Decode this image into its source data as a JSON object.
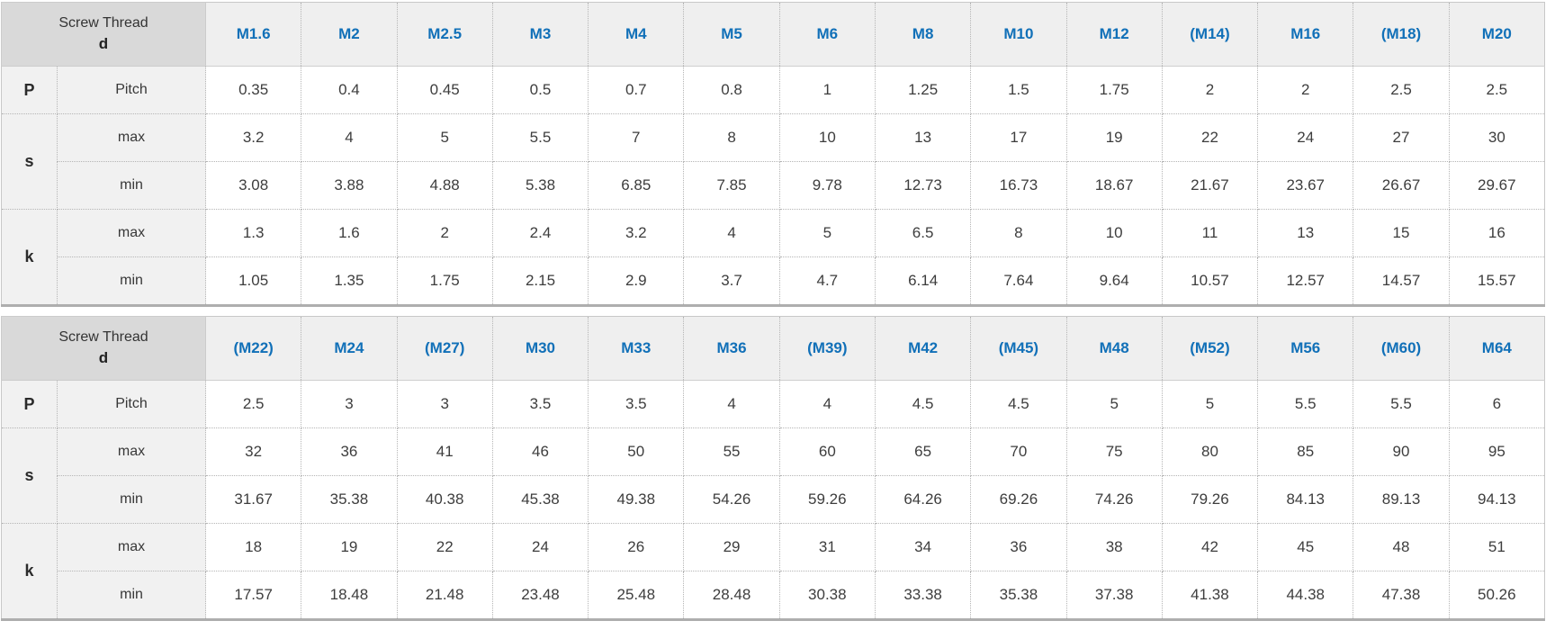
{
  "colors": {
    "accent_blue": "#1170b8",
    "corner_header_bg": "#d9d9d9",
    "column_header_bg": "#efefef",
    "row_label_bg": "#f1f1f1",
    "data_cell_bg": "#ffffff",
    "data_text": "#3d3d3d",
    "border": "#b5b5b5"
  },
  "chart_data": [
    {
      "type": "table",
      "corner_label_line1": "Screw Thread",
      "corner_label_line2": "d",
      "columns": [
        "M1.6",
        "M2",
        "M2.5",
        "M3",
        "M4",
        "M5",
        "M6",
        "M8",
        "M10",
        "M12",
        "(M14)",
        "M16",
        "(M18)",
        "M20"
      ],
      "row_groups": [
        {
          "label": "P",
          "rows": [
            {
              "sublabel": "Pitch",
              "values": [
                "0.35",
                "0.4",
                "0.45",
                "0.5",
                "0.7",
                "0.8",
                "1",
                "1.25",
                "1.5",
                "1.75",
                "2",
                "2",
                "2.5",
                "2.5"
              ]
            }
          ]
        },
        {
          "label": "s",
          "rows": [
            {
              "sublabel": "max",
              "values": [
                "3.2",
                "4",
                "5",
                "5.5",
                "7",
                "8",
                "10",
                "13",
                "17",
                "19",
                "22",
                "24",
                "27",
                "30"
              ]
            },
            {
              "sublabel": "min",
              "values": [
                "3.08",
                "3.88",
                "4.88",
                "5.38",
                "6.85",
                "7.85",
                "9.78",
                "12.73",
                "16.73",
                "18.67",
                "21.67",
                "23.67",
                "26.67",
                "29.67"
              ]
            }
          ]
        },
        {
          "label": "k",
          "rows": [
            {
              "sublabel": "max",
              "values": [
                "1.3",
                "1.6",
                "2",
                "2.4",
                "3.2",
                "4",
                "5",
                "6.5",
                "8",
                "10",
                "11",
                "13",
                "15",
                "16"
              ]
            },
            {
              "sublabel": "min",
              "values": [
                "1.05",
                "1.35",
                "1.75",
                "2.15",
                "2.9",
                "3.7",
                "4.7",
                "6.14",
                "7.64",
                "9.64",
                "10.57",
                "12.57",
                "14.57",
                "15.57"
              ]
            }
          ]
        }
      ]
    },
    {
      "type": "table",
      "corner_label_line1": "Screw Thread",
      "corner_label_line2": "d",
      "columns": [
        "(M22)",
        "M24",
        "(M27)",
        "M30",
        "M33",
        "M36",
        "(M39)",
        "M42",
        "(M45)",
        "M48",
        "(M52)",
        "M56",
        "(M60)",
        "M64"
      ],
      "row_groups": [
        {
          "label": "P",
          "rows": [
            {
              "sublabel": "Pitch",
              "values": [
                "2.5",
                "3",
                "3",
                "3.5",
                "3.5",
                "4",
                "4",
                "4.5",
                "4.5",
                "5",
                "5",
                "5.5",
                "5.5",
                "6"
              ]
            }
          ]
        },
        {
          "label": "s",
          "rows": [
            {
              "sublabel": "max",
              "values": [
                "32",
                "36",
                "41",
                "46",
                "50",
                "55",
                "60",
                "65",
                "70",
                "75",
                "80",
                "85",
                "90",
                "95"
              ]
            },
            {
              "sublabel": "min",
              "values": [
                "31.67",
                "35.38",
                "40.38",
                "45.38",
                "49.38",
                "54.26",
                "59.26",
                "64.26",
                "69.26",
                "74.26",
                "79.26",
                "84.13",
                "89.13",
                "94.13"
              ]
            }
          ]
        },
        {
          "label": "k",
          "rows": [
            {
              "sublabel": "max",
              "values": [
                "18",
                "19",
                "22",
                "24",
                "26",
                "29",
                "31",
                "34",
                "36",
                "38",
                "42",
                "45",
                "48",
                "51"
              ]
            },
            {
              "sublabel": "min",
              "values": [
                "17.57",
                "18.48",
                "21.48",
                "23.48",
                "25.48",
                "28.48",
                "30.38",
                "33.38",
                "35.38",
                "37.38",
                "41.38",
                "44.38",
                "47.38",
                "50.26"
              ]
            }
          ]
        }
      ]
    }
  ]
}
